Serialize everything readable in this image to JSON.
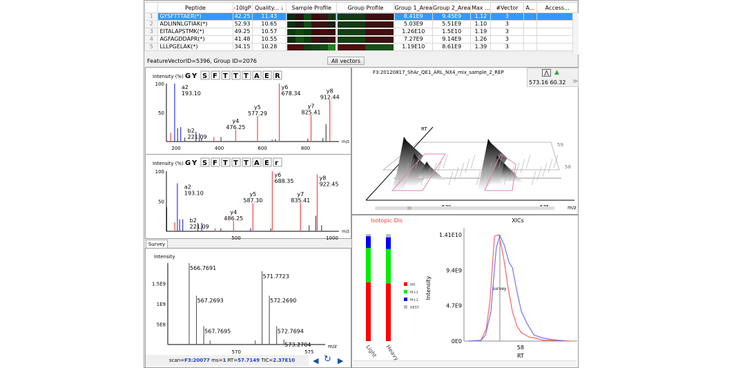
{
  "table": {
    "columns": [
      "",
      "Peptide",
      "-10lgP",
      "Quality...",
      "Sample Profile",
      "Group Profile",
      "Group 1_Area",
      "Group 2_Area",
      "Max ...",
      "#Vector",
      "A...",
      "Access..."
    ],
    "sort_icon": "arrow-down-icon",
    "rows": [
      {
        "n": "1",
        "peptide": "GYSFTTTAER(*)",
        "lgp": "42.25",
        "quality": "11.43",
        "g1": "8.41E9",
        "g2": "9.45E9",
        "max": "1.12",
        "vec": "3",
        "a": "",
        "acc": "",
        "selected": true,
        "sample": [
          "#0c2a0c",
          "#2a1010",
          "#0f4a0f",
          "#3a0c0c",
          "#3f0f0f",
          "#123412"
        ],
        "group": [
          "#123a12",
          "#3a1010"
        ]
      },
      {
        "n": "2",
        "peptide": "ADLINNLGTIAK(*)",
        "lgp": "52.93",
        "quality": "10.65",
        "g1": "5.03E9",
        "g2": "5.51E9",
        "max": "1.10",
        "vec": "3",
        "a": "",
        "acc": "",
        "sample": [
          "#0e2e0e",
          "#1e1a10",
          "#164a16",
          "#3a1010",
          "#3a0f0f",
          "#1a2010"
        ],
        "group": [
          "#123a12",
          "#3a1212"
        ]
      },
      {
        "n": "3",
        "peptide": "EITALAPSTMK(*)",
        "lgp": "49.25",
        "quality": "10.57",
        "g1": "1.26E10",
        "g2": "1.5E10",
        "max": "1.19",
        "vec": "3",
        "a": "",
        "acc": "",
        "sample": [
          "#0f3a0f",
          "#104810",
          "#0c3a0c",
          "#3a0c0c",
          "#450e0e",
          "#3a0c0c"
        ],
        "group": [
          "#124012",
          "#421010"
        ]
      },
      {
        "n": "4",
        "peptide": "AGFAGDDAPR(*)",
        "lgp": "41.48",
        "quality": "10.55",
        "g1": "7.27E9",
        "g2": "9.14E9",
        "max": "1.26",
        "vec": "3",
        "a": "",
        "acc": "",
        "sample": [
          "#0c2c0c",
          "#115011",
          "#0e3a0e",
          "#3c0e0e",
          "#2a1010",
          "#3c0e0e"
        ],
        "group": [
          "#124012",
          "#3c1010"
        ]
      },
      {
        "n": "5",
        "peptide": "LLLPGELAK(*)",
        "lgp": "34.15",
        "quality": "10.28",
        "g1": "1.19E10",
        "g2": "8.61E9",
        "max": "1.39",
        "vec": "3",
        "a": "",
        "acc": "",
        "sample": [
          "#4a0e0e",
          "#4a1010",
          "#143a14",
          "#164216",
          "#1a4a1a",
          "#22801f"
        ],
        "group": [
          "#4a1010",
          "#185018"
        ]
      }
    ]
  },
  "status": {
    "text": "FeatureVectorID=5396, Group ID=2076",
    "all_vectors": "All vectors"
  },
  "spectra": [
    {
      "ylabel": "Intensity (%)",
      "xlabel": "m/z",
      "sequence": [
        "G",
        "Y",
        "S",
        "F",
        "T",
        "T",
        "T",
        "A",
        "E",
        "R"
      ],
      "xlim": [
        155,
        955
      ],
      "ylim": [
        0,
        100
      ],
      "xticks": [
        200,
        400,
        600,
        800
      ],
      "yticks": [
        50,
        100
      ],
      "peaks": [
        {
          "mz": 193.1,
          "i": 100,
          "c": "blue",
          "label": "a2",
          "mzl": "193.10"
        },
        {
          "mz": 221.09,
          "i": 25,
          "c": "blue",
          "label": "b2",
          "mzl": "221.09"
        },
        {
          "mz": 476.25,
          "i": 20,
          "c": "red",
          "label": "y4",
          "mzl": "476.25"
        },
        {
          "mz": 577.29,
          "i": 44,
          "c": "red",
          "label": "y5",
          "mzl": "577.29"
        },
        {
          "mz": 678.34,
          "i": 100,
          "c": "red",
          "label": "y6",
          "mzl": "678.34"
        },
        {
          "mz": 825.41,
          "i": 46,
          "c": "red",
          "label": "y7",
          "mzl": "825.41"
        },
        {
          "mz": 912.44,
          "i": 72,
          "c": "red",
          "label": "y8",
          "mzl": "912.44"
        },
        {
          "mz": 175,
          "i": 15,
          "c": "red"
        },
        {
          "mz": 207,
          "i": 23,
          "c": "gray"
        },
        {
          "mz": 240,
          "i": 7,
          "c": "gray"
        },
        {
          "mz": 292,
          "i": 17,
          "c": "gray"
        },
        {
          "mz": 308,
          "i": 14,
          "c": "blue"
        },
        {
          "mz": 318,
          "i": 6,
          "c": "gray"
        },
        {
          "mz": 375,
          "i": 8,
          "c": "red"
        },
        {
          "mz": 408,
          "i": 8,
          "c": "gray"
        },
        {
          "mz": 645,
          "i": 3,
          "c": "gray"
        },
        {
          "mz": 660,
          "i": 4,
          "c": "gray"
        },
        {
          "mz": 810,
          "i": 5,
          "c": "gray"
        },
        {
          "mz": 880,
          "i": 6,
          "c": "gray"
        },
        {
          "mz": 895,
          "i": 30,
          "c": "gray"
        }
      ]
    },
    {
      "ylabel": "Intensity (%)",
      "xlabel": "m/z",
      "sequence": [
        "G",
        "Y",
        "S",
        "F",
        "T",
        "T",
        "T",
        "A",
        "E",
        "r"
      ],
      "xlim": [
        136,
        1036
      ],
      "ylim": [
        0,
        100
      ],
      "xticks": [
        500,
        1000
      ],
      "yticks": [
        50,
        100
      ],
      "peaks": [
        {
          "mz": 193.1,
          "i": 80,
          "c": "blue",
          "label": "a2",
          "mzl": "193.10"
        },
        {
          "mz": 221.09,
          "i": 20,
          "c": "blue",
          "label": "b2",
          "mzl": "221.09"
        },
        {
          "mz": 486.25,
          "i": 17,
          "c": "red",
          "label": "y4",
          "mzl": "486.25"
        },
        {
          "mz": 587.3,
          "i": 47,
          "c": "red",
          "label": "y5",
          "mzl": "587.30"
        },
        {
          "mz": 688.35,
          "i": 100,
          "c": "red",
          "label": "y6",
          "mzl": "688.35"
        },
        {
          "mz": 835.41,
          "i": 47,
          "c": "red",
          "label": "y7",
          "mzl": "835.41"
        },
        {
          "mz": 922.45,
          "i": 95,
          "c": "red",
          "label": "y8",
          "mzl": "922.45"
        },
        {
          "mz": 137,
          "i": 40,
          "c": "black"
        },
        {
          "mz": 180,
          "i": 15,
          "c": "red"
        },
        {
          "mz": 205,
          "i": 20,
          "c": "gray"
        },
        {
          "mz": 300,
          "i": 14,
          "c": "gray"
        },
        {
          "mz": 320,
          "i": 14,
          "c": "blue"
        },
        {
          "mz": 390,
          "i": 5,
          "c": "red"
        },
        {
          "mz": 420,
          "i": 5,
          "c": "gray"
        },
        {
          "mz": 575,
          "i": 5,
          "c": "blue"
        },
        {
          "mz": 680,
          "i": 5,
          "c": "gray"
        },
        {
          "mz": 880,
          "i": 10,
          "c": "gray"
        },
        {
          "mz": 915,
          "i": 26,
          "c": "gray"
        },
        {
          "mz": 945,
          "i": 10,
          "c": "gray"
        }
      ]
    }
  ],
  "colors": {
    "blue": "#4040ff",
    "red": "#ff5050",
    "gray": "#555555",
    "black": "#000000",
    "selection": "#3399ff",
    "link": "#1a3cc8"
  },
  "survey": {
    "tab": "Survey",
    "ylabel": "Intensity",
    "xlabel": "m/z",
    "xlim": [
      565.3,
      576.1
    ],
    "ylim": [
      0,
      2000000000
    ],
    "xticks": [
      570,
      575
    ],
    "yticks": [
      {
        "v": 500000000,
        "l": "5E8"
      },
      {
        "v": 1000000000,
        "l": "1E9"
      },
      {
        "v": 1500000000,
        "l": "1.5E9"
      }
    ],
    "peaks": [
      {
        "mz": 566.7691,
        "i": 2000000000,
        "label": "566.7691"
      },
      {
        "mz": 567.2693,
        "i": 1200000000,
        "label": "567.2693"
      },
      {
        "mz": 567.7695,
        "i": 450000000,
        "label": "567.7695"
      },
      {
        "mz": 571.7723,
        "i": 1800000000,
        "label": "571.7723"
      },
      {
        "mz": 572.269,
        "i": 1200000000,
        "label": "572.2690"
      },
      {
        "mz": 572.7694,
        "i": 450000000,
        "label": "572.7694"
      },
      {
        "mz": 573.2704,
        "i": 120000000,
        "label": "573.2704"
      },
      {
        "mz": 568.2,
        "i": 100000000
      },
      {
        "mz": 571.3,
        "i": 100000000
      },
      {
        "mz": 574.3,
        "i": 50000000
      }
    ],
    "scan": {
      "scan_l": "scan=",
      "scan": "F3:20077",
      "ms_l": " ms=",
      "ms": "1",
      "rt_l": " RT=",
      "rt": "57.7149",
      "tic_l": " TIC=",
      "tic": "2.37E10"
    }
  },
  "view3d": {
    "title": "F3:20120817_ShAr_QE1_ARL_NX4_mix_sample_2_REP",
    "coords": "573.16  60.32",
    "rt_label": "RT",
    "xlabel": "m/z",
    "xticks": [
      "570",
      "575"
    ],
    "rt_ticks": [
      "59",
      "58"
    ]
  },
  "isotopic": {
    "title": "Isotopic Dis",
    "bars": [
      {
        "name": "Light",
        "M0": 0.55,
        "M+1": 0.32,
        "M+2": 0.11,
        "REST": 0.02
      },
      {
        "name": "Heavy",
        "M0": 0.54,
        "M+1": 0.32,
        "M+2": 0.11,
        "REST": 0.03
      }
    ],
    "legend": [
      {
        "k": "M0",
        "c": "#ff0000"
      },
      {
        "k": "M+1",
        "c": "#00ee00"
      },
      {
        "k": "M+2",
        "c": "#0000ff"
      },
      {
        "k": "REST",
        "c": "#bbbbbb"
      }
    ]
  },
  "xic": {
    "title": "XICs",
    "ylabel": "Intensity",
    "xlabel": "RT",
    "xlim": [
      57.37,
      58.57
    ],
    "ylim": [
      0,
      14100000000
    ],
    "yticks": [
      {
        "v": 0,
        "l": "0E0"
      },
      {
        "v": 4700000000,
        "l": "4.7E9"
      },
      {
        "v": 9400000000,
        "l": "9.4E9"
      },
      {
        "v": 14100000000,
        "l": "1.41E10"
      }
    ],
    "xticks": [
      58
    ],
    "marker": {
      "rt": 57.77,
      "label": "Survey"
    },
    "series": [
      {
        "color": "#ff6060",
        "rt": [
          57.42,
          57.56,
          57.62,
          57.66,
          57.71,
          57.76,
          57.81,
          57.86,
          57.91,
          57.96,
          58.01,
          58.1,
          58.17,
          58.25,
          58.42,
          58.56
        ],
        "y": [
          0,
          0.1,
          1.7,
          5.4,
          13.9,
          14.1,
          11.2,
          7.2,
          3.9,
          2.0,
          1.1,
          0.5,
          0.4,
          0.1,
          0.1,
          0
        ]
      },
      {
        "color": "#7070ff",
        "rt": [
          57.42,
          57.56,
          57.61,
          57.67,
          57.73,
          57.77,
          57.82,
          57.87,
          57.91,
          57.96,
          58.01,
          58.07,
          58.15,
          58.25,
          58.35,
          58.49
        ],
        "y": [
          0,
          0.1,
          0.8,
          3.9,
          12.4,
          14.0,
          12.7,
          10.5,
          9.7,
          6.6,
          3.9,
          2.4,
          0.8,
          0.4,
          0.2,
          0
        ]
      }
    ]
  }
}
